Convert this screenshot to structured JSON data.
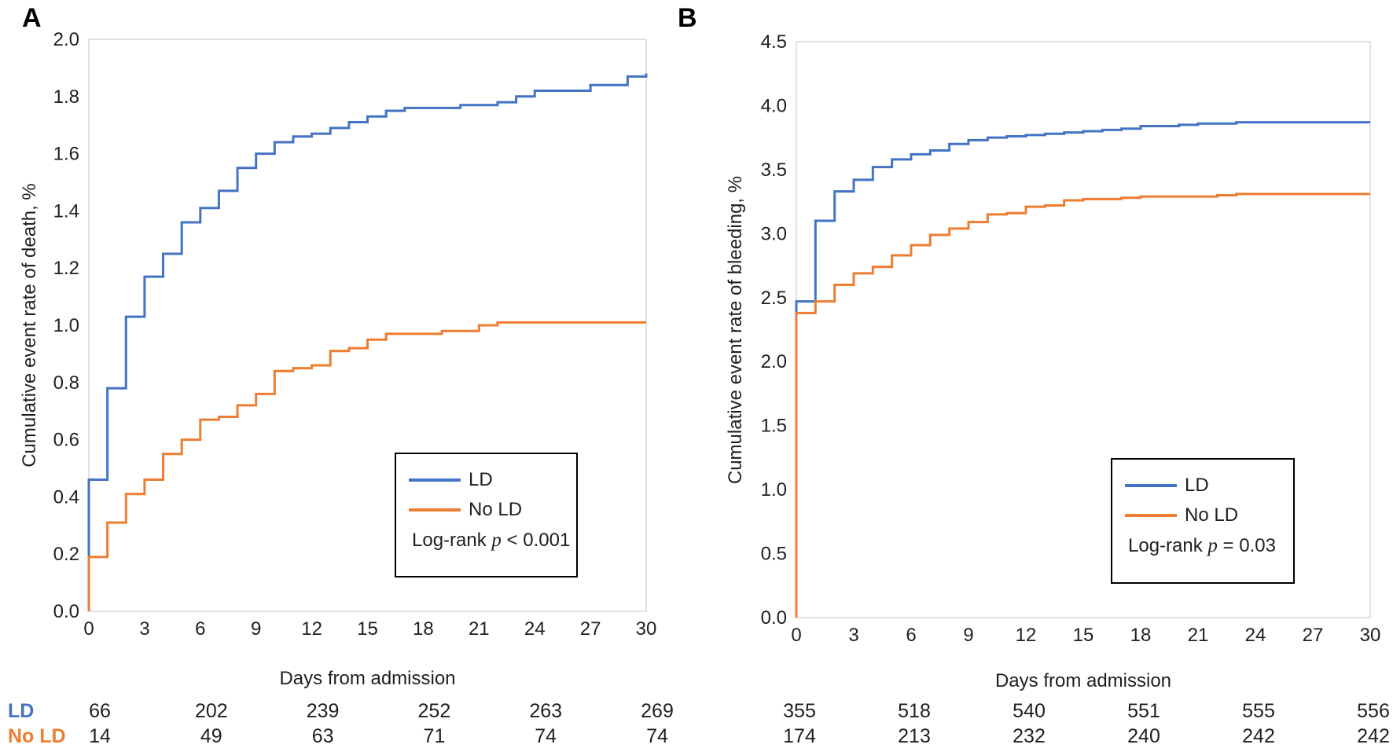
{
  "figure": {
    "panel_a_letter": "A",
    "panel_b_letter": "B"
  },
  "colors": {
    "ld_blue": "#4472C4",
    "no_ld_orange": "#ED7D31",
    "frame_gray": "#D9D9D9",
    "text_black": "#1F1F1F"
  },
  "chart_data": [
    {
      "type": "line",
      "subtype": "kaplan-meier-step",
      "panel": "A",
      "ylabel": "Cumulative event rate of death, %",
      "xlabel": "Days from admission",
      "ylim": [
        0,
        2.0
      ],
      "ytick_step": 0.2,
      "yticks": [
        0.0,
        0.2,
        0.4,
        0.6,
        0.8,
        1.0,
        1.2,
        1.4,
        1.6,
        1.8,
        2.0
      ],
      "xticks": [
        0,
        3,
        6,
        9,
        12,
        15,
        18,
        21,
        24,
        27,
        30
      ],
      "x": [
        0,
        1,
        2,
        3,
        4,
        5,
        6,
        7,
        8,
        9,
        10,
        11,
        12,
        13,
        14,
        15,
        16,
        17,
        18,
        19,
        20,
        21,
        22,
        23,
        24,
        25,
        26,
        27,
        28,
        29,
        30
      ],
      "grid": false,
      "legend_position": "inside-lower-right",
      "series": [
        {
          "name": "LD",
          "color_key": "ld_blue",
          "values": [
            0.46,
            0.78,
            1.03,
            1.17,
            1.25,
            1.36,
            1.41,
            1.47,
            1.55,
            1.6,
            1.64,
            1.66,
            1.67,
            1.69,
            1.71,
            1.73,
            1.75,
            1.76,
            1.76,
            1.76,
            1.77,
            1.77,
            1.78,
            1.8,
            1.82,
            1.82,
            1.82,
            1.84,
            1.84,
            1.87,
            1.88
          ]
        },
        {
          "name": "No LD",
          "color_key": "no_ld_orange",
          "values": [
            0.19,
            0.31,
            0.41,
            0.46,
            0.55,
            0.6,
            0.67,
            0.68,
            0.72,
            0.76,
            0.84,
            0.85,
            0.86,
            0.91,
            0.92,
            0.95,
            0.97,
            0.97,
            0.97,
            0.98,
            0.98,
            1.0,
            1.01,
            1.01,
            1.01,
            1.01,
            1.01,
            1.01,
            1.01,
            1.01,
            1.01
          ]
        }
      ],
      "legend": {
        "stat_prefix": "Log-rank ",
        "stat_var": "p",
        "stat_rest": " < 0.001"
      },
      "at_risk": {
        "days": [
          0,
          6,
          12,
          18,
          24,
          30
        ],
        "rows": [
          {
            "label": "LD",
            "values": [
              66,
              202,
              239,
              252,
              263,
              269
            ]
          },
          {
            "label": "No LD",
            "values": [
              14,
              49,
              63,
              71,
              74,
              74
            ]
          }
        ]
      }
    },
    {
      "type": "line",
      "subtype": "kaplan-meier-step",
      "panel": "B",
      "ylabel": "Cumulative event rate of bleeding, %",
      "xlabel": "Days from admission",
      "ylim": [
        0,
        4.5
      ],
      "ytick_step": 0.5,
      "yticks": [
        0.0,
        0.5,
        1.0,
        1.5,
        2.0,
        2.5,
        3.0,
        3.5,
        4.0,
        4.5
      ],
      "xticks": [
        0,
        3,
        6,
        9,
        12,
        15,
        18,
        21,
        24,
        27,
        30
      ],
      "x": [
        0,
        1,
        2,
        3,
        4,
        5,
        6,
        7,
        8,
        9,
        10,
        11,
        12,
        13,
        14,
        15,
        16,
        17,
        18,
        19,
        20,
        21,
        22,
        23,
        24,
        25,
        26,
        27,
        28,
        29,
        30
      ],
      "grid": false,
      "legend_position": "inside-lower-right",
      "series": [
        {
          "name": "LD",
          "color_key": "ld_blue",
          "values": [
            2.47,
            3.1,
            3.33,
            3.42,
            3.52,
            3.58,
            3.62,
            3.65,
            3.7,
            3.73,
            3.75,
            3.76,
            3.77,
            3.78,
            3.79,
            3.8,
            3.81,
            3.82,
            3.84,
            3.84,
            3.85,
            3.86,
            3.86,
            3.87,
            3.87,
            3.87,
            3.87,
            3.87,
            3.87,
            3.87,
            3.87
          ]
        },
        {
          "name": "No LD",
          "color_key": "no_ld_orange",
          "values": [
            2.38,
            2.47,
            2.6,
            2.69,
            2.74,
            2.83,
            2.91,
            2.99,
            3.04,
            3.09,
            3.15,
            3.16,
            3.21,
            3.22,
            3.26,
            3.27,
            3.27,
            3.28,
            3.29,
            3.29,
            3.29,
            3.29,
            3.3,
            3.31,
            3.31,
            3.31,
            3.31,
            3.31,
            3.31,
            3.31,
            3.31
          ]
        }
      ],
      "legend": {
        "stat_prefix": "Log-rank ",
        "stat_var": "p",
        "stat_rest": " = 0.03"
      },
      "at_risk": {
        "days": [
          0,
          6,
          12,
          18,
          24,
          30
        ],
        "rows": [
          {
            "label": "LD",
            "values": [
              355,
              518,
              540,
              551,
              555,
              556
            ]
          },
          {
            "label": "No LD",
            "values": [
              174,
              213,
              232,
              240,
              242,
              242
            ]
          }
        ]
      }
    }
  ]
}
